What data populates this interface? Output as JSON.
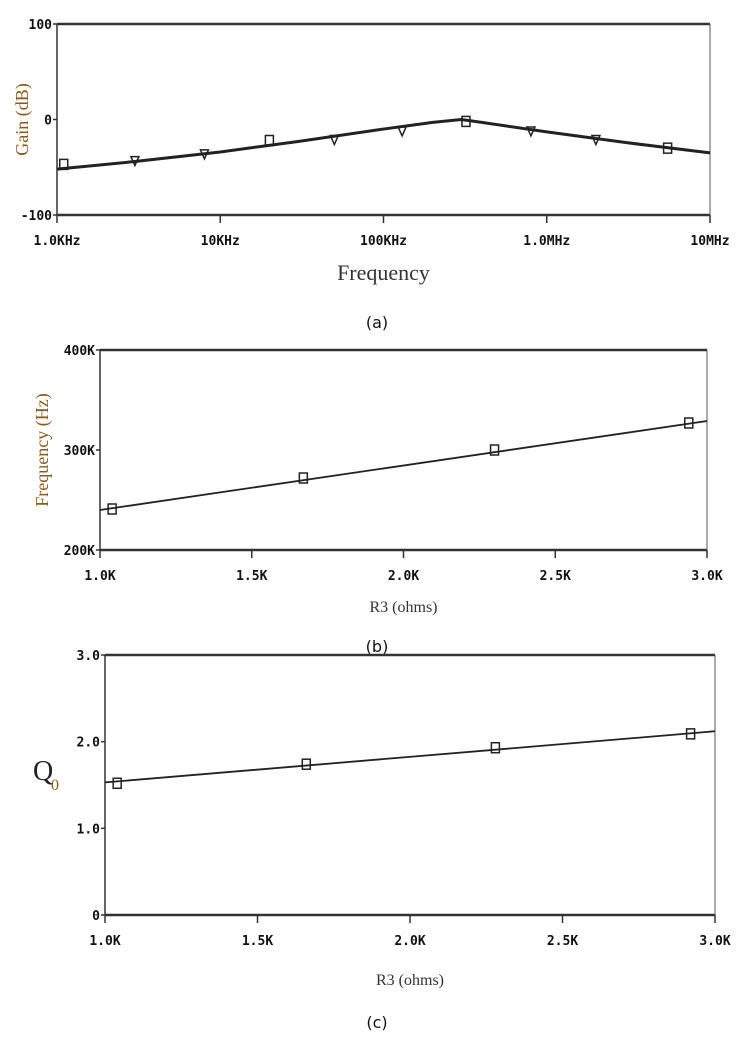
{
  "chart_data": [
    {
      "type": "line",
      "caption": "(a)",
      "xlabel": "Frequency",
      "ylabel": "Gain (dB)",
      "xscale": "log",
      "xlim": [
        1000,
        10000000
      ],
      "ylim": [
        -100,
        100
      ],
      "xticks": [
        1000,
        10000,
        100000,
        1000000,
        10000000
      ],
      "xtick_labels": [
        "1.0KHz",
        "10KHz",
        "100KHz",
        "1.0MHz",
        "10MHz"
      ],
      "yticks": [
        -100,
        0,
        100
      ],
      "ytick_labels": [
        "-100",
        "0",
        "100"
      ],
      "grid": false,
      "series": [
        {
          "x": [
            1000,
            3000,
            10000,
            30000,
            100000,
            200000,
            300000,
            400000,
            1000000,
            3000000,
            10000000
          ],
          "y": [
            -52,
            -44,
            -34,
            -23,
            -10,
            -3,
            0,
            -3,
            -13,
            -24,
            -35
          ]
        }
      ],
      "markers": [
        {
          "x": 1100,
          "y": -47,
          "shape": "square"
        },
        {
          "x": 3000,
          "y": -43,
          "shape": "triangle"
        },
        {
          "x": 8000,
          "y": -36,
          "shape": "triangle"
        },
        {
          "x": 20000,
          "y": -22,
          "shape": "square"
        },
        {
          "x": 50000,
          "y": -21,
          "shape": "triangle"
        },
        {
          "x": 130000,
          "y": -12,
          "shape": "triangle"
        },
        {
          "x": 320000,
          "y": -2,
          "shape": "square"
        },
        {
          "x": 800000,
          "y": -12,
          "shape": "triangle"
        },
        {
          "x": 2000000,
          "y": -21,
          "shape": "triangle"
        },
        {
          "x": 5500000,
          "y": -30,
          "shape": "square"
        }
      ]
    },
    {
      "type": "line",
      "caption": "(b)",
      "xlabel": "R3 (ohms)",
      "ylabel": "Frequency (Hz)",
      "xlim": [
        1000,
        3000
      ],
      "ylim": [
        200000,
        400000
      ],
      "xticks": [
        1000,
        1500,
        2000,
        2500,
        3000
      ],
      "xtick_labels": [
        "1.0K",
        "1.5K",
        "2.0K",
        "2.5K",
        "3.0K"
      ],
      "yticks": [
        200000,
        300000,
        400000
      ],
      "ytick_labels": [
        "200K",
        "300K",
        "400K"
      ],
      "grid": false,
      "series": [
        {
          "x": [
            1000,
            3000
          ],
          "y": [
            240000,
            329000
          ]
        }
      ],
      "markers": [
        {
          "x": 1040,
          "y": 241000,
          "shape": "square"
        },
        {
          "x": 1670,
          "y": 272000,
          "shape": "square"
        },
        {
          "x": 2300,
          "y": 300000,
          "shape": "square"
        },
        {
          "x": 2940,
          "y": 327000,
          "shape": "square"
        }
      ]
    },
    {
      "type": "line",
      "caption": "(c)",
      "xlabel": "R3 (ohms)",
      "ylabel": "Q",
      "ylabel_sub": "0",
      "xlim": [
        1000,
        3000
      ],
      "ylim": [
        0,
        3
      ],
      "xticks": [
        1000,
        1500,
        2000,
        2500,
        3000
      ],
      "xtick_labels": [
        "1.0K",
        "1.5K",
        "2.0K",
        "2.5K",
        "3.0K"
      ],
      "yticks": [
        0,
        1,
        2,
        3
      ],
      "ytick_labels": [
        "0",
        "1.0",
        "2.0",
        "3.0"
      ],
      "grid": false,
      "series": [
        {
          "x": [
            1000,
            3000
          ],
          "y": [
            1.53,
            2.12
          ]
        }
      ],
      "markers": [
        {
          "x": 1040,
          "y": 1.52,
          "shape": "square"
        },
        {
          "x": 1660,
          "y": 1.74,
          "shape": "square"
        },
        {
          "x": 2280,
          "y": 1.93,
          "shape": "square"
        },
        {
          "x": 2920,
          "y": 2.09,
          "shape": "square"
        }
      ]
    }
  ]
}
